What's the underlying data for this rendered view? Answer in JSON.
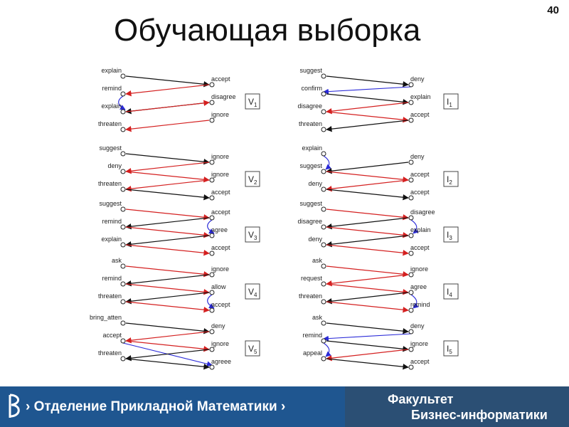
{
  "slide": {
    "title": "Обучающая выборка",
    "page_number": "40"
  },
  "colors": {
    "red_arrow": "#d42020",
    "black_arrow": "#111111",
    "blue_arrow": "#2a2ad8",
    "footer_left": "#1f5690",
    "footer_right": "#2b4f74"
  },
  "footer": {
    "department": "› Отделение Прикладной Математики ›",
    "faculty_line1": "Факультет",
    "faculty_line2": "Бизнес-информатики"
  },
  "groups": [
    {
      "id": "V1",
      "letter": "V",
      "sub": "1",
      "left": [
        "explain",
        "remind",
        "explain",
        "threaten"
      ],
      "right": [
        "accept",
        "disagree",
        "ignore"
      ],
      "edges": [
        {
          "from": "L0",
          "to": "R0",
          "color": "black"
        },
        {
          "from": "R0",
          "to": "L1",
          "color": "red"
        },
        {
          "from": "L1",
          "to": "L2",
          "color": "blue"
        },
        {
          "from": "R1",
          "to": "L2",
          "color": "black"
        },
        {
          "from": "L2",
          "to": "R1",
          "color": "red"
        },
        {
          "from": "R2",
          "to": "L3",
          "color": "red"
        }
      ]
    },
    {
      "id": "V2",
      "letter": "V",
      "sub": "2",
      "left": [
        "suggest",
        "deny",
        "threaten"
      ],
      "right": [
        "ignore",
        "ignore",
        "accept"
      ],
      "edges": [
        {
          "from": "L0",
          "to": "R0",
          "color": "black"
        },
        {
          "from": "R0",
          "to": "L1",
          "color": "red"
        },
        {
          "from": "L1",
          "to": "R1",
          "color": "red"
        },
        {
          "from": "R1",
          "to": "L2",
          "color": "red"
        },
        {
          "from": "L2",
          "to": "R2",
          "color": "black"
        }
      ]
    },
    {
      "id": "V3",
      "letter": "V",
      "sub": "3",
      "left": [
        "suggest",
        "remind",
        "explain"
      ],
      "right": [
        "accept",
        "agree",
        "accept"
      ],
      "edges": [
        {
          "from": "L0",
          "to": "R0",
          "color": "red"
        },
        {
          "from": "R0",
          "to": "R1",
          "color": "blue"
        },
        {
          "from": "R0",
          "to": "L1",
          "color": "black"
        },
        {
          "from": "L1",
          "to": "R1",
          "color": "red"
        },
        {
          "from": "R1",
          "to": "L2",
          "color": "black"
        },
        {
          "from": "L2",
          "to": "R2",
          "color": "red"
        }
      ]
    },
    {
      "id": "V4",
      "letter": "V",
      "sub": "4",
      "left": [
        "ask",
        "remind",
        "threaten"
      ],
      "right": [
        "ignore",
        "allow",
        "accept"
      ],
      "edges": [
        {
          "from": "L0",
          "to": "R0",
          "color": "red"
        },
        {
          "from": "R0",
          "to": "L1",
          "color": "black"
        },
        {
          "from": "L1",
          "to": "R1",
          "color": "red"
        },
        {
          "from": "R1",
          "to": "R2",
          "color": "blue"
        },
        {
          "from": "R1",
          "to": "L2",
          "color": "black"
        },
        {
          "from": "L2",
          "to": "R2",
          "color": "red"
        }
      ]
    },
    {
      "id": "V5",
      "letter": "V",
      "sub": "5",
      "left": [
        "bring_atten",
        "accept",
        "threaten"
      ],
      "right": [
        "deny",
        "ignore",
        "agreee"
      ],
      "edges": [
        {
          "from": "L0",
          "to": "R0",
          "color": "black"
        },
        {
          "from": "R0",
          "to": "L1",
          "color": "red"
        },
        {
          "from": "L1",
          "to": "R2",
          "color": "blue"
        },
        {
          "from": "L1",
          "to": "R1",
          "color": "red"
        },
        {
          "from": "R1",
          "to": "L2",
          "color": "black"
        },
        {
          "from": "L2",
          "to": "R2",
          "color": "black"
        }
      ]
    },
    {
      "id": "I1",
      "letter": "I",
      "sub": "1",
      "left": [
        "suggest",
        "confirm",
        "disagree",
        "threaten"
      ],
      "right": [
        "deny",
        "explain",
        "accept"
      ],
      "edges": [
        {
          "from": "L0",
          "to": "R0",
          "color": "black"
        },
        {
          "from": "R0",
          "to": "L1",
          "color": "blue"
        },
        {
          "from": "L1",
          "to": "R1",
          "color": "black"
        },
        {
          "from": "R1",
          "to": "L2",
          "color": "red"
        },
        {
          "from": "L2",
          "to": "R2",
          "color": "red"
        },
        {
          "from": "R2",
          "to": "L3",
          "color": "black"
        }
      ]
    },
    {
      "id": "I2",
      "letter": "I",
      "sub": "2",
      "left": [
        "explain",
        "suggest",
        "deny"
      ],
      "right": [
        "deny",
        "accept",
        "accept"
      ],
      "edges": [
        {
          "from": "L0",
          "to": "L1",
          "color": "blue"
        },
        {
          "from": "R0",
          "to": "L1",
          "color": "black"
        },
        {
          "from": "L1",
          "to": "R1",
          "color": "red"
        },
        {
          "from": "R1",
          "to": "L2",
          "color": "red"
        },
        {
          "from": "L2",
          "to": "R2",
          "color": "black"
        }
      ]
    },
    {
      "id": "I3",
      "letter": "I",
      "sub": "3",
      "left": [
        "suggest",
        "disagree",
        "deny"
      ],
      "right": [
        "disagree",
        "explain",
        "accept"
      ],
      "edges": [
        {
          "from": "L0",
          "to": "R0",
          "color": "red"
        },
        {
          "from": "R0",
          "to": "R1",
          "color": "blue"
        },
        {
          "from": "R0",
          "to": "L1",
          "color": "black"
        },
        {
          "from": "L1",
          "to": "R1",
          "color": "red"
        },
        {
          "from": "R1",
          "to": "L2",
          "color": "black"
        },
        {
          "from": "L2",
          "to": "R2",
          "color": "red"
        }
      ]
    },
    {
      "id": "I4",
      "letter": "I",
      "sub": "4",
      "left": [
        "ask",
        "request",
        "threaten"
      ],
      "right": [
        "ignore",
        "agree",
        "remind"
      ],
      "edges": [
        {
          "from": "L0",
          "to": "R0",
          "color": "red"
        },
        {
          "from": "R0",
          "to": "L1",
          "color": "red"
        },
        {
          "from": "L1",
          "to": "R1",
          "color": "red"
        },
        {
          "from": "R1",
          "to": "R2",
          "color": "blue"
        },
        {
          "from": "R1",
          "to": "L2",
          "color": "black"
        },
        {
          "from": "L2",
          "to": "R2",
          "color": "red"
        }
      ]
    },
    {
      "id": "I5",
      "letter": "I",
      "sub": "5",
      "left": [
        "ask",
        "remind",
        "appeal"
      ],
      "right": [
        "deny",
        "ignore",
        "accept"
      ],
      "edges": [
        {
          "from": "L0",
          "to": "R0",
          "color": "black"
        },
        {
          "from": "R0",
          "to": "L1",
          "color": "blue"
        },
        {
          "from": "L1",
          "to": "R1",
          "color": "black"
        },
        {
          "from": "R1",
          "to": "L2",
          "color": "red"
        },
        {
          "from": "L1",
          "to": "L2",
          "color": "blue"
        },
        {
          "from": "L2",
          "to": "R2",
          "color": "black"
        }
      ]
    }
  ]
}
